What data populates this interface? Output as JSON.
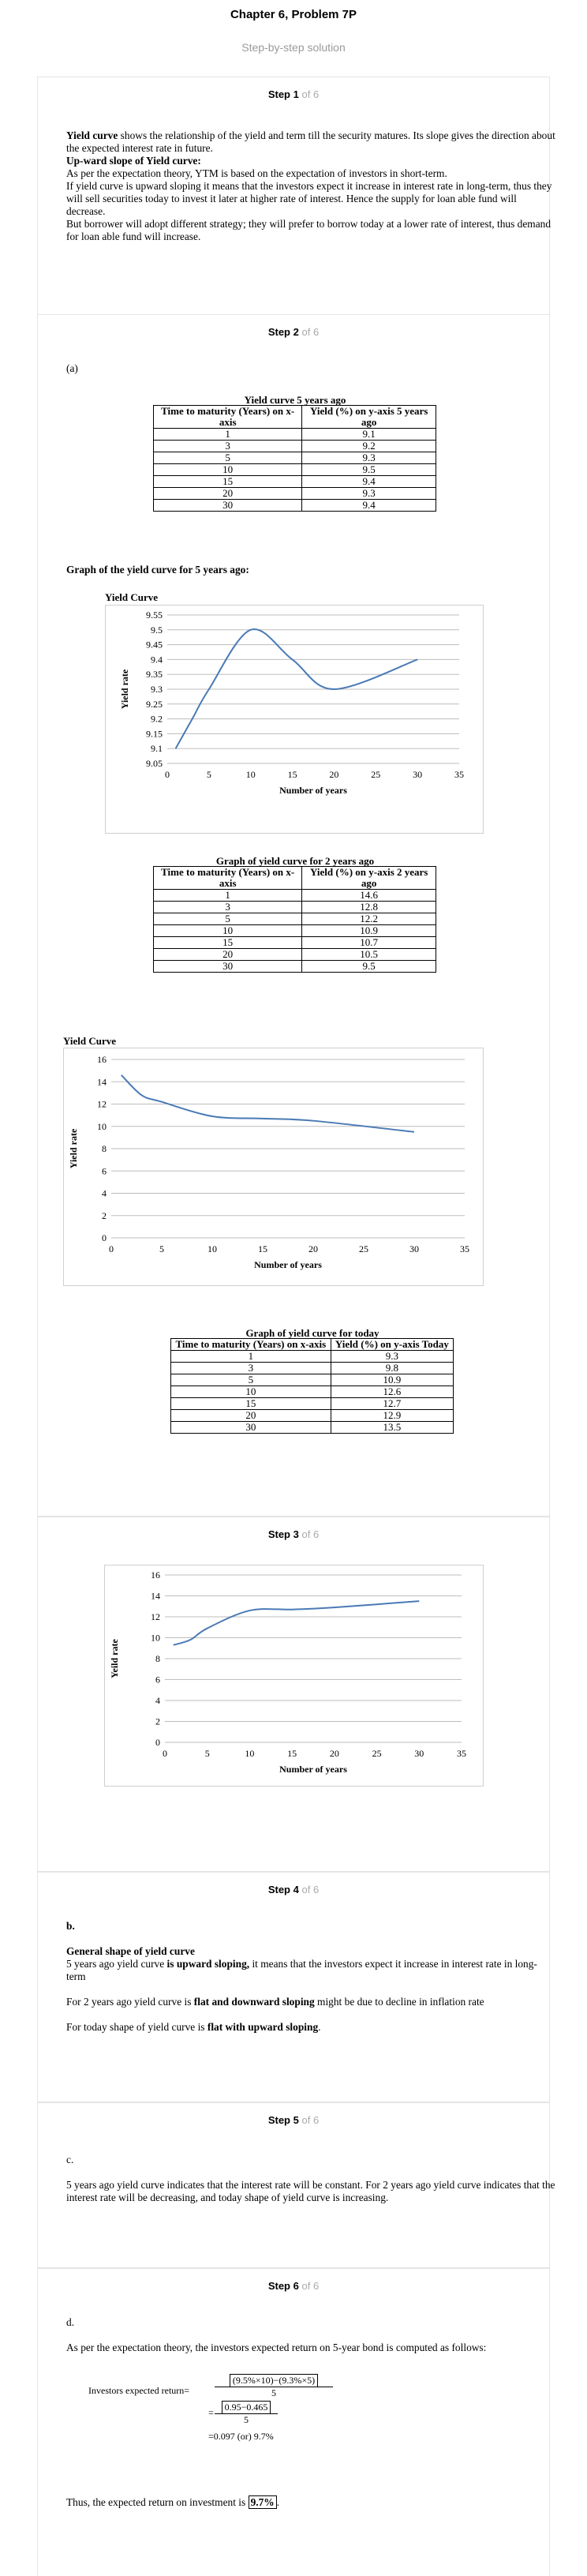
{
  "header": {
    "title": "Chapter 6, Problem 7P",
    "subtitle": "Step-by-step solution"
  },
  "step_word": "Step",
  "of_word": "of",
  "total_steps": "6",
  "steps": {
    "s1": {
      "num": "1",
      "of": "of 6"
    },
    "s2": {
      "num": "2",
      "of": "of 6"
    },
    "s3": {
      "num": "3",
      "of": "of 6"
    },
    "s4": {
      "num": "4",
      "of": "of 6"
    },
    "s5": {
      "num": "5",
      "of": "of 6"
    },
    "s6": {
      "num": "6",
      "of": "of 6"
    }
  },
  "step1": {
    "term": "Yield curve",
    "p1_rest": " shows the relationship of the yield and term till the security matures. Its slope gives the direction about the expected interest rate in future.",
    "heading": "Up-ward slope of Yield curve:",
    "p2": "As per the expectation theory, YTM is based on the expectation of investors in short-term.",
    "p3": "If yield curve is upward sloping it means that the investors expect it increase in interest rate in long-term, thus they will sell securities today to invest it later at higher rate of interest. Hence the supply for loan able fund will decrease.",
    "p4": "But borrower will adopt different strategy; they will prefer to borrow today at a lower rate of interest, thus demand for loan able fund will increase."
  },
  "step2": {
    "part": "(a)",
    "t1": {
      "caption": "Yield curve 5 years ago",
      "h1": "Time to maturity (Years) on x-axis",
      "h2": "Yield (%) on y-axis 5 years ago",
      "rows": [
        [
          "1",
          "9.1"
        ],
        [
          "3",
          "9.2"
        ],
        [
          "5",
          "9.3"
        ],
        [
          "10",
          "9.5"
        ],
        [
          "15",
          "9.4"
        ],
        [
          "20",
          "9.3"
        ],
        [
          "30",
          "9.4"
        ]
      ]
    },
    "graph1_heading": "Graph of the yield curve for 5 years ago:",
    "t2": {
      "caption": "Graph of yield curve for 2 years ago",
      "h1": "Time to maturity (Years) on x-axis",
      "h2": "Yield (%) on y-axis 2 years ago",
      "rows": [
        [
          "1",
          "14.6"
        ],
        [
          "3",
          "12.8"
        ],
        [
          "5",
          "12.2"
        ],
        [
          "10",
          "10.9"
        ],
        [
          "15",
          "10.7"
        ],
        [
          "20",
          "10.5"
        ],
        [
          "30",
          "9.5"
        ]
      ]
    },
    "t3": {
      "caption": "Graph of yield curve for today",
      "h1": "Time to maturity (Years) on x-axis",
      "h2": "Yield (%) on y-axis Today",
      "rows": [
        [
          "1",
          "9.3"
        ],
        [
          "3",
          "9.8"
        ],
        [
          "5",
          "10.9"
        ],
        [
          "10",
          "12.6"
        ],
        [
          "15",
          "12.7"
        ],
        [
          "20",
          "12.9"
        ],
        [
          "30",
          "13.5"
        ]
      ]
    }
  },
  "step4": {
    "part": "b.",
    "heading": "General shape of yield curve",
    "p1a": "5 years ago yield curve ",
    "p1b": "is upward sloping,",
    "p1c": " it means that the investors expect it increase in interest rate in long-term",
    "p2a": "For 2 years ago yield curve is ",
    "p2b": "flat and downward sloping",
    "p2c": " might be due to decline in inflation rate",
    "p3a": "For today shape of yield curve is ",
    "p3b": "flat with upward sloping",
    "p3c": "."
  },
  "step5": {
    "part": "c.",
    "p1": "5 years ago yield curve indicates that the interest rate will be constant. For 2 years ago yield curve indicates that the interest rate will be decreasing, and today shape of yield curve is increasing."
  },
  "step6": {
    "part": "d.",
    "p1": "As per the expectation theory, the investors expected return on 5-year bond is computed as follows:",
    "eq_label": "Investors expected return=",
    "eq1_num": "(9.5%×10)−(9.3%×5)",
    "eq1_den": "5",
    "eq2_num": "0.95−0.465",
    "eq2_den": "5",
    "eq3": "=0.097 (or) 9.7%",
    "conclusion": "Thus, the expected return on investment is ",
    "answer": "9.7%",
    "end": "."
  },
  "chart_data": [
    {
      "type": "line",
      "title": "Yield Curve",
      "xlabel": "Number of years",
      "ylabel": "Yield rate",
      "x": [
        1,
        3,
        5,
        10,
        15,
        20,
        30
      ],
      "series": [
        {
          "values": [
            9.1,
            9.2,
            9.3,
            9.5,
            9.4,
            9.3,
            9.4
          ]
        }
      ],
      "xlim": [
        0,
        35
      ],
      "ylim": [
        9.05,
        9.55
      ],
      "xticks": [
        "0",
        "5",
        "10",
        "15",
        "20",
        "25",
        "30",
        "35"
      ],
      "yticks": [
        "9.05",
        "9.1",
        "9.15",
        "9.2",
        "9.25",
        "9.3",
        "9.35",
        "9.4",
        "9.45",
        "9.5",
        "9.55"
      ],
      "grid": true,
      "color": "#4a7ab5"
    },
    {
      "type": "line",
      "title": "Yield Curve",
      "xlabel": "Number of years",
      "ylabel": "Yield rate",
      "x": [
        1,
        3,
        5,
        10,
        15,
        20,
        30
      ],
      "series": [
        {
          "values": [
            14.6,
            12.8,
            12.2,
            10.9,
            10.7,
            10.5,
            9.5
          ]
        }
      ],
      "xlim": [
        0,
        35
      ],
      "ylim": [
        0,
        16
      ],
      "xticks": [
        "0",
        "5",
        "10",
        "15",
        "20",
        "25",
        "30",
        "35"
      ],
      "yticks": [
        "0",
        "2",
        "4",
        "6",
        "8",
        "10",
        "12",
        "14",
        "16"
      ],
      "grid": true,
      "color": "#4a7ab5"
    },
    {
      "type": "line",
      "title": "",
      "xlabel": "Number of years",
      "ylabel": "Yeild rate",
      "x": [
        1,
        3,
        5,
        10,
        15,
        20,
        30
      ],
      "series": [
        {
          "values": [
            9.3,
            9.8,
            10.9,
            12.6,
            12.7,
            12.9,
            13.5
          ]
        }
      ],
      "xlim": [
        0,
        35
      ],
      "ylim": [
        0,
        16
      ],
      "xticks": [
        "0",
        "5",
        "10",
        "15",
        "20",
        "25",
        "30",
        "35"
      ],
      "yticks": [
        "0",
        "2",
        "4",
        "6",
        "8",
        "10",
        "12",
        "14",
        "16"
      ],
      "grid": true,
      "color": "#4a7ab5"
    }
  ]
}
